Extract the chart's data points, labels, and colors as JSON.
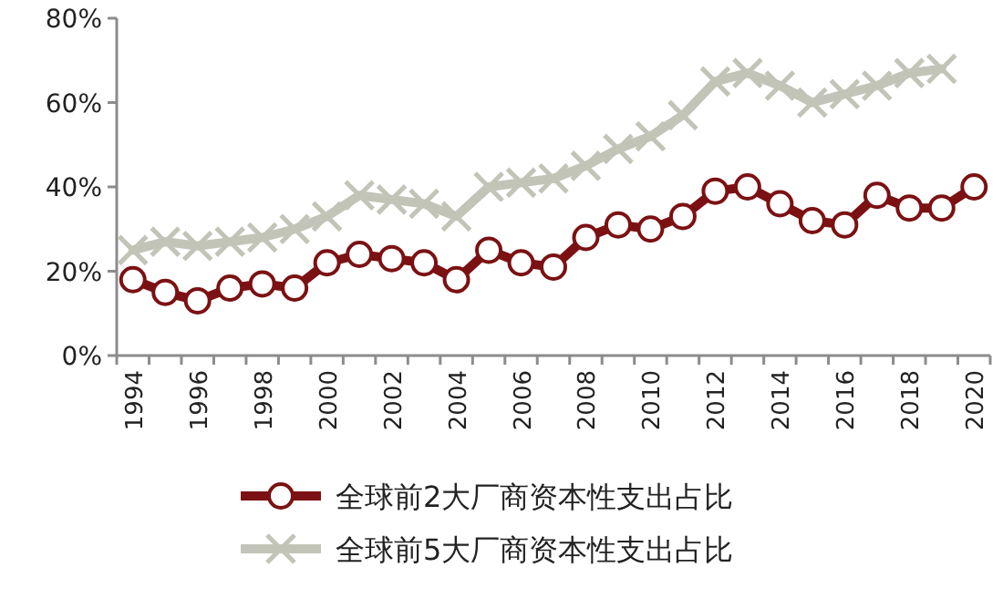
{
  "chart_data": {
    "type": "line",
    "categories": [
      "1994",
      null,
      "1996",
      null,
      "1998",
      null,
      "2000",
      null,
      "2002",
      null,
      "2004",
      null,
      "2006",
      null,
      "2008",
      null,
      "2010",
      null,
      "2012",
      null,
      "2014",
      null,
      "2016",
      null,
      "2018",
      null,
      "2020"
    ],
    "series": [
      {
        "name": "全球前2大厂商资本性支出占比",
        "color": "#7b1113",
        "marker": "circle",
        "values": [
          18,
          15,
          13,
          16,
          17,
          16,
          22,
          24,
          23,
          22,
          18,
          25,
          22,
          21,
          28,
          31,
          30,
          33,
          39,
          40,
          36,
          32,
          31,
          38,
          35,
          35,
          40
        ]
      },
      {
        "name": "全球前5大厂商资本性支出占比",
        "color": "#c3c4b8",
        "marker": "cross",
        "values": [
          25,
          27,
          26,
          27,
          28,
          30,
          33,
          38,
          37,
          36,
          33,
          40,
          41,
          42,
          45,
          49,
          52,
          57,
          65,
          67,
          64,
          60,
          62,
          64,
          67,
          68,
          null
        ]
      }
    ],
    "ylim": [
      0,
      80
    ],
    "yticks": [
      {
        "value": 0,
        "label": "0%"
      },
      {
        "value": 20,
        "label": "20%"
      },
      {
        "value": 40,
        "label": "40%"
      },
      {
        "value": 60,
        "label": "60%"
      },
      {
        "value": 80,
        "label": "80%"
      }
    ],
    "legend": "bottom"
  }
}
